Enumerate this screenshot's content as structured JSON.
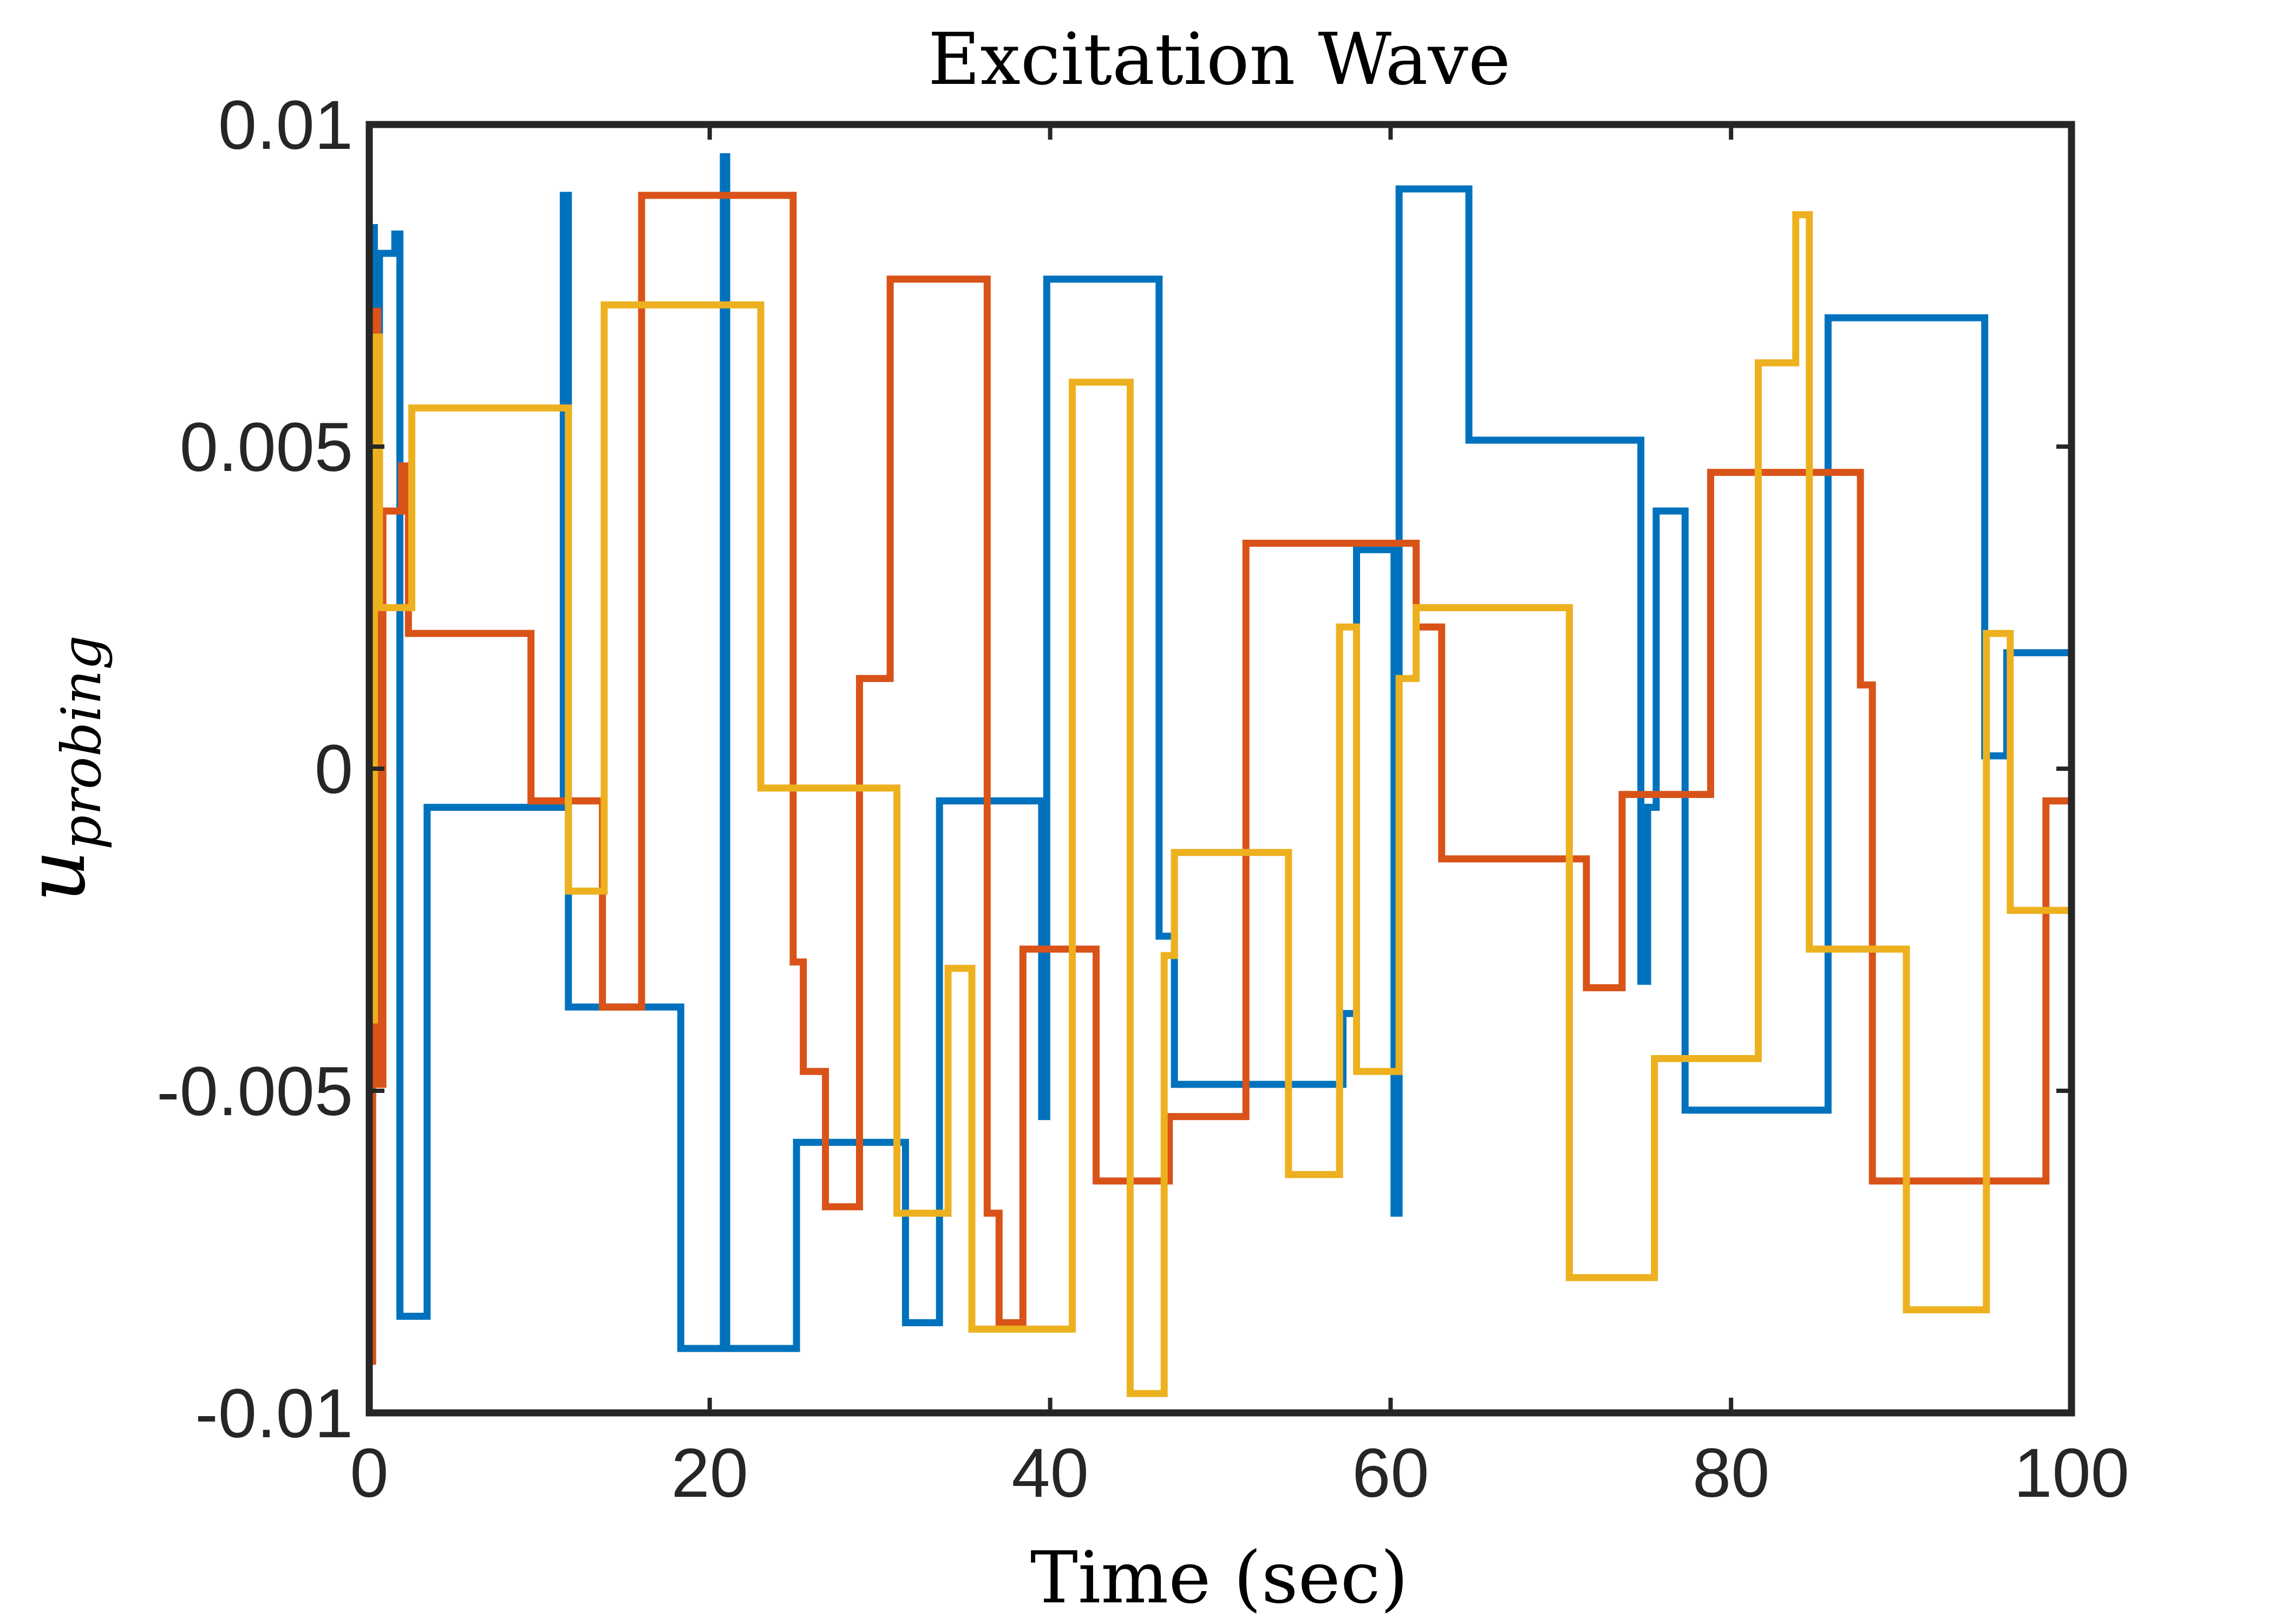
{
  "chart_data": {
    "type": "line",
    "title": "Excitation Wave",
    "xlabel": "Time (sec)",
    "ylabel": {
      "base": "u",
      "subscript": "probing"
    },
    "xlim": [
      0,
      100
    ],
    "ylim": [
      -0.01,
      0.01
    ],
    "x_ticks": [
      0,
      20,
      40,
      60,
      80,
      100
    ],
    "x_tick_labels": [
      "0",
      "20",
      "40",
      "60",
      "80",
      "100"
    ],
    "y_ticks": [
      -0.01,
      -0.005,
      0,
      0.005,
      0.01
    ],
    "y_tick_labels": [
      "-0.01",
      "-0.005",
      "0",
      "0.005",
      "0.01"
    ],
    "grid": false,
    "legend": "none",
    "step": "post",
    "series": [
      {
        "color": "#0072BD",
        "x": [
          0,
          0.3,
          0.6,
          0.9,
          1.5,
          1.8,
          2.1,
          3.4,
          11.1,
          11.4,
          11.7,
          12.0,
          18.3,
          20.8,
          21.0,
          25.1,
          31.5,
          33.5,
          39.5,
          39.8,
          41.0,
          46.4,
          46.8,
          47.3,
          57.2,
          58.0,
          58.7,
          59.0,
          60.2,
          60.5,
          64.6,
          74.7,
          74.9,
          75.1,
          75.6,
          77.3,
          80.0,
          85.7,
          94.9,
          96.2,
          100
        ],
        "y": [
          0.0084,
          -0.0038,
          0.008,
          0.008,
          0.0083,
          -0.0085,
          -0.0085,
          -0.0006,
          -0.0006,
          0.0089,
          -0.0037,
          -0.0037,
          -0.009,
          0.0095,
          -0.009,
          -0.0058,
          -0.0086,
          -0.0005,
          -0.0054,
          0.0076,
          0.0076,
          -0.0026,
          -0.0026,
          -0.0049,
          -0.0038,
          0.0034,
          0.0034,
          0.0034,
          -0.0069,
          0.009,
          0.0051,
          -0.0033,
          -0.0033,
          -0.0006,
          0.004,
          -0.0053,
          -0.0053,
          0.007,
          0.0002,
          0.0018,
          0.0018
        ]
      },
      {
        "color": "#D95319",
        "x": [
          0,
          0.2,
          0.5,
          0.8,
          1.9,
          2.3,
          9.5,
          13.7,
          16.0,
          24.9,
          25.5,
          26.8,
          27.8,
          28.8,
          30.6,
          36.3,
          37.0,
          38.4,
          42.7,
          47.0,
          51.5,
          61.5,
          63.0,
          71.0,
          71.5,
          73.6,
          76.5,
          78.8,
          87.6,
          88.3,
          94.6,
          98.5,
          100
        ],
        "y": [
          -0.0092,
          0.0071,
          -0.0049,
          0.004,
          0.0047,
          0.0021,
          -0.0005,
          -0.0037,
          0.0089,
          -0.003,
          -0.0047,
          -0.0068,
          -0.0068,
          0.0014,
          0.0076,
          -0.0069,
          -0.0086,
          -0.0028,
          -0.0064,
          -0.0054,
          0.0035,
          0.0022,
          -0.0014,
          -0.0014,
          -0.0034,
          -0.0004,
          -0.0004,
          0.0046,
          0.0013,
          -0.0064,
          -0.0064,
          -0.0005,
          -0.0005
        ]
      },
      {
        "color": "#EDB120",
        "x": [
          0,
          0.3,
          0.6,
          2.5,
          11.7,
          13.8,
          23.0,
          31.0,
          34.0,
          35.4,
          41.3,
          44.7,
          46.7,
          47.3,
          54.0,
          57.0,
          58.0,
          60.5,
          61.5,
          70.5,
          75.5,
          81.6,
          83.8,
          84.6,
          90.3,
          95.0,
          96.4,
          100
        ],
        "y": [
          -0.0039,
          0.0067,
          0.0025,
          0.0056,
          -0.0019,
          0.0072,
          -0.0003,
          -0.0069,
          -0.0031,
          -0.0087,
          0.006,
          -0.0097,
          -0.0029,
          -0.0013,
          -0.0063,
          0.0022,
          -0.0047,
          0.0014,
          0.0025,
          -0.0079,
          -0.0045,
          0.0063,
          0.0086,
          -0.0028,
          -0.0084,
          0.0021,
          -0.0022,
          -0.0022
        ]
      }
    ]
  }
}
